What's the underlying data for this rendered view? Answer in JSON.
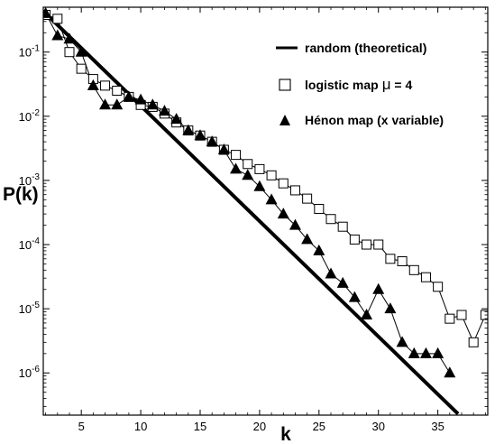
{
  "chart_data": {
    "type": "scatter",
    "title": "",
    "xlabel": "k",
    "ylabel": "P(k)",
    "xlim": [
      1.8,
      39.2
    ],
    "ylim": [
      2.2e-07,
      0.5
    ],
    "yscale": "log",
    "x_ticks": [
      5,
      10,
      15,
      20,
      25,
      30,
      35
    ],
    "y_ticks": [
      {
        "value": 1e-06,
        "base": "10",
        "exp": "-6"
      },
      {
        "value": 1e-05,
        "base": "10",
        "exp": "-5"
      },
      {
        "value": 0.0001,
        "base": "10",
        "exp": "-4"
      },
      {
        "value": 0.001,
        "base": "10",
        "exp": "-3"
      },
      {
        "value": 0.01,
        "base": "10",
        "exp": "-2"
      },
      {
        "value": 0.1,
        "base": "10",
        "exp": "-1"
      }
    ],
    "grid": false,
    "legend_position": "top-right",
    "series": [
      {
        "name": "random (theoretical)",
        "kind": "line",
        "color": "#000000",
        "x": [
          2,
          36.7
        ],
        "y": [
          0.4,
          2.3e-07
        ]
      },
      {
        "name": "logistic map",
        "name_mu": "μ",
        "name_suffix": " = 4",
        "kind": "markers-line",
        "marker": "open-square",
        "color": "#000000",
        "x": [
          2,
          3,
          4,
          5,
          6,
          7,
          8,
          9,
          10,
          11,
          12,
          13,
          14,
          15,
          16,
          17,
          18,
          19,
          20,
          21,
          22,
          23,
          24,
          25,
          26,
          27,
          28,
          29,
          30,
          31,
          32,
          33,
          34,
          35,
          36,
          37,
          38,
          39
        ],
        "y": [
          0.38,
          0.33,
          0.1,
          0.055,
          0.038,
          0.03,
          0.025,
          0.02,
          0.015,
          0.014,
          0.011,
          0.008,
          0.006,
          0.005,
          0.004,
          0.003,
          0.0025,
          0.0018,
          0.0015,
          0.0012,
          0.0009,
          0.0007,
          0.00052,
          0.00036,
          0.00025,
          0.00019,
          0.00012,
          0.0001,
          0.0001,
          6e-05,
          5.5e-05,
          4e-05,
          3.1e-05,
          2.2e-05,
          7e-06,
          8e-06,
          3e-06,
          8e-06
        ]
      },
      {
        "name": "Hénon map (x variable)",
        "kind": "markers-line",
        "marker": "filled-triangle",
        "color": "#000000",
        "x": [
          2,
          3,
          4,
          5,
          6,
          7,
          8,
          9,
          10,
          11,
          12,
          13,
          14,
          15,
          16,
          17,
          18,
          19,
          20,
          21,
          22,
          23,
          24,
          25,
          26,
          27,
          28,
          29,
          30,
          31,
          32,
          33,
          34,
          35,
          36
        ],
        "y": [
          0.4,
          0.18,
          0.16,
          0.1,
          0.03,
          0.015,
          0.015,
          0.02,
          0.018,
          0.015,
          0.012,
          0.009,
          0.006,
          0.005,
          0.004,
          0.003,
          0.0015,
          0.0012,
          0.0008,
          0.0005,
          0.0003,
          0.0002,
          0.00012,
          8e-05,
          3.5e-05,
          2.5e-05,
          1.5e-05,
          8e-06,
          2e-05,
          1e-05,
          3e-06,
          2e-06,
          2e-06,
          2e-06,
          1e-06
        ]
      }
    ]
  }
}
